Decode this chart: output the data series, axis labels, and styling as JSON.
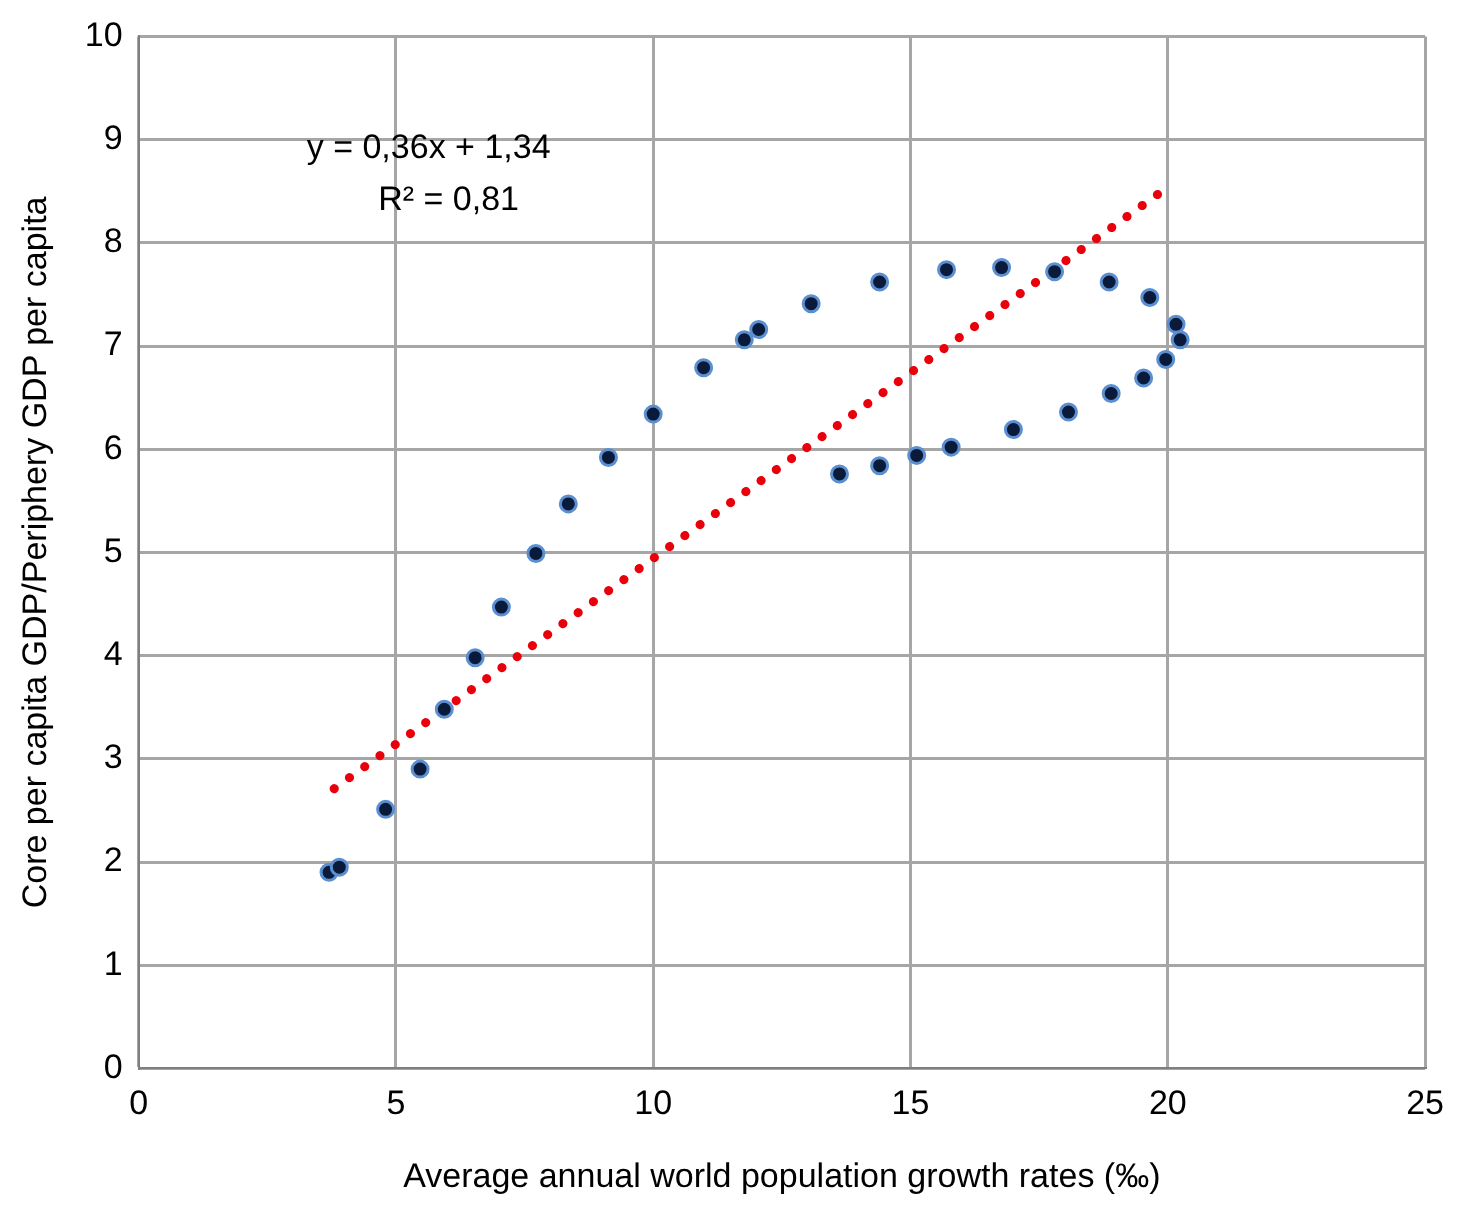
{
  "chart_data": {
    "type": "scatter",
    "xlabel": "Average annual world population growth rates (‰)",
    "ylabel": "Core per capita GDP/Periphery GDP per capita",
    "xlim": [
      0,
      25
    ],
    "xticks": [
      0,
      5,
      10,
      15,
      20,
      25
    ],
    "ylim": [
      0,
      10
    ],
    "yticks": [
      0,
      1,
      2,
      3,
      4,
      5,
      6,
      7,
      8,
      9,
      10
    ],
    "grid": true,
    "legend": false,
    "marker": "circle",
    "annotations": [
      "y = 0,36x + 1,34",
      "R² = 0,81"
    ],
    "series": [
      {
        "color": "#0a1a3a",
        "x": [
          3.7,
          3.9,
          4.8,
          5.47,
          5.94,
          6.54,
          7.05,
          7.72,
          8.35,
          9.13,
          10.0,
          10.98,
          11.77,
          12.05,
          13.07,
          14.4,
          15.7,
          16.77,
          17.8,
          18.86,
          19.65,
          20.16,
          20.24,
          19.96,
          19.53,
          18.9,
          18.07,
          17.0,
          15.79,
          15.12,
          14.4,
          13.62
        ],
        "values": [
          1.9,
          1.95,
          2.51,
          2.9,
          3.48,
          3.98,
          4.47,
          4.99,
          5.47,
          5.92,
          6.34,
          6.79,
          7.06,
          7.16,
          7.41,
          7.62,
          7.74,
          7.76,
          7.72,
          7.62,
          7.47,
          7.21,
          7.06,
          6.87,
          6.69,
          6.54,
          6.36,
          6.19,
          6.02,
          5.94,
          5.84,
          5.76
        ]
      },
      {
        "type": "line",
        "color": "#e8000b",
        "line_style": "dotted",
        "marker": "none",
        "x": [
          3.8,
          20
        ],
        "values": [
          2.71,
          8.54
        ]
      }
    ]
  }
}
